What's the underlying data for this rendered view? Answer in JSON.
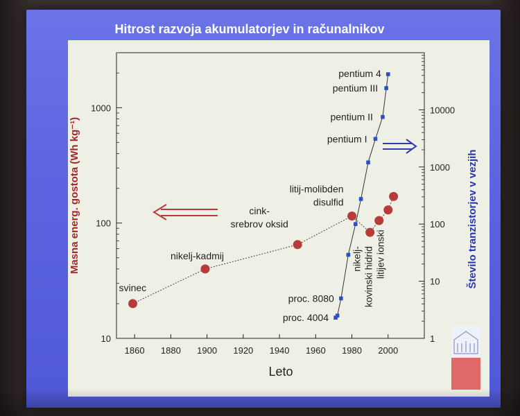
{
  "slide": {
    "title": "Hitrost razvoja akumulatorjev in računalnikov",
    "colors": {
      "slide_bg": "#5a62e0",
      "plot_bg": "#eef0e6",
      "battery_marker": "#b83a3a",
      "transistor_marker": "#2d4fc2",
      "left_axis_label": "#a02a2a",
      "right_axis_label": "#2a36b0",
      "arrow_left": "#b83a3a",
      "arrow_right": "#2d3fb0",
      "logo_block": "#e06a6a"
    },
    "decorations": {
      "left_arrow_icon": "double-arrow-left-icon",
      "right_arrow_icon": "double-arrow-right-icon",
      "logo_icon": "university-building-icon"
    }
  },
  "chart_data": {
    "type": "scatter",
    "title": "",
    "xlabel": "Leto",
    "ylabel_left": "Masna energ. gostota (Wh kg⁻¹)",
    "ylabel_right": "Število tranzistorjev v vezjih",
    "xlim": [
      1850,
      2020
    ],
    "ylim_left": [
      10,
      3000
    ],
    "ylim_right": [
      1,
      100000
    ],
    "y_scale": "log",
    "grid": false,
    "x_ticks": [
      1860,
      1880,
      1900,
      1920,
      1940,
      1960,
      1980,
      2000
    ],
    "y_left_ticks": [
      {
        "value": 10,
        "label": "10"
      },
      {
        "value": 100,
        "label": "100"
      },
      {
        "value": 1000,
        "label": "1000"
      }
    ],
    "y_right_ticks": [
      {
        "value": 1,
        "label": "1"
      },
      {
        "value": 10,
        "label": "10"
      },
      {
        "value": 100,
        "label": "100"
      },
      {
        "value": 1000,
        "label": "1000"
      },
      {
        "value": 10000,
        "label": "10000"
      }
    ],
    "series": [
      {
        "axis": "left",
        "marker": "circle",
        "points": [
          {
            "x": 1859,
            "y": 20,
            "label": "svinec"
          },
          {
            "x": 1899,
            "y": 40,
            "label": "nikelj-kadmij"
          },
          {
            "x": 1950,
            "y": 65,
            "label": "cink-\nsrebrov oksid"
          },
          {
            "x": 1980,
            "y": 115,
            "label": "litij-molibden\ndisulfid"
          },
          {
            "x": 1990,
            "y": 83,
            "label": "nikelj-\nkovinski hidrid"
          },
          {
            "x": 1995,
            "y": 105,
            "label": ""
          },
          {
            "x": 2000,
            "y": 130,
            "label": ""
          },
          {
            "x": 2003,
            "y": 170,
            "label": "litijev ionski"
          }
        ]
      },
      {
        "axis": "right",
        "marker": "square",
        "points": [
          {
            "x": 1971,
            "y": 2.3,
            "label": "proc. 4004"
          },
          {
            "x": 1972,
            "y": 2.5,
            "label": ""
          },
          {
            "x": 1974,
            "y": 5,
            "label": "proc. 8080"
          },
          {
            "x": 1978,
            "y": 29,
            "label": ""
          },
          {
            "x": 1982,
            "y": 100,
            "label": ""
          },
          {
            "x": 1985,
            "y": 275,
            "label": ""
          },
          {
            "x": 1989,
            "y": 1200,
            "label": ""
          },
          {
            "x": 1993,
            "y": 3100,
            "label": "pentium I"
          },
          {
            "x": 1997,
            "y": 7500,
            "label": "pentium II"
          },
          {
            "x": 1999,
            "y": 24000,
            "label": "pentium III"
          },
          {
            "x": 2000,
            "y": 42000,
            "label": "pentium 4"
          }
        ]
      }
    ]
  }
}
